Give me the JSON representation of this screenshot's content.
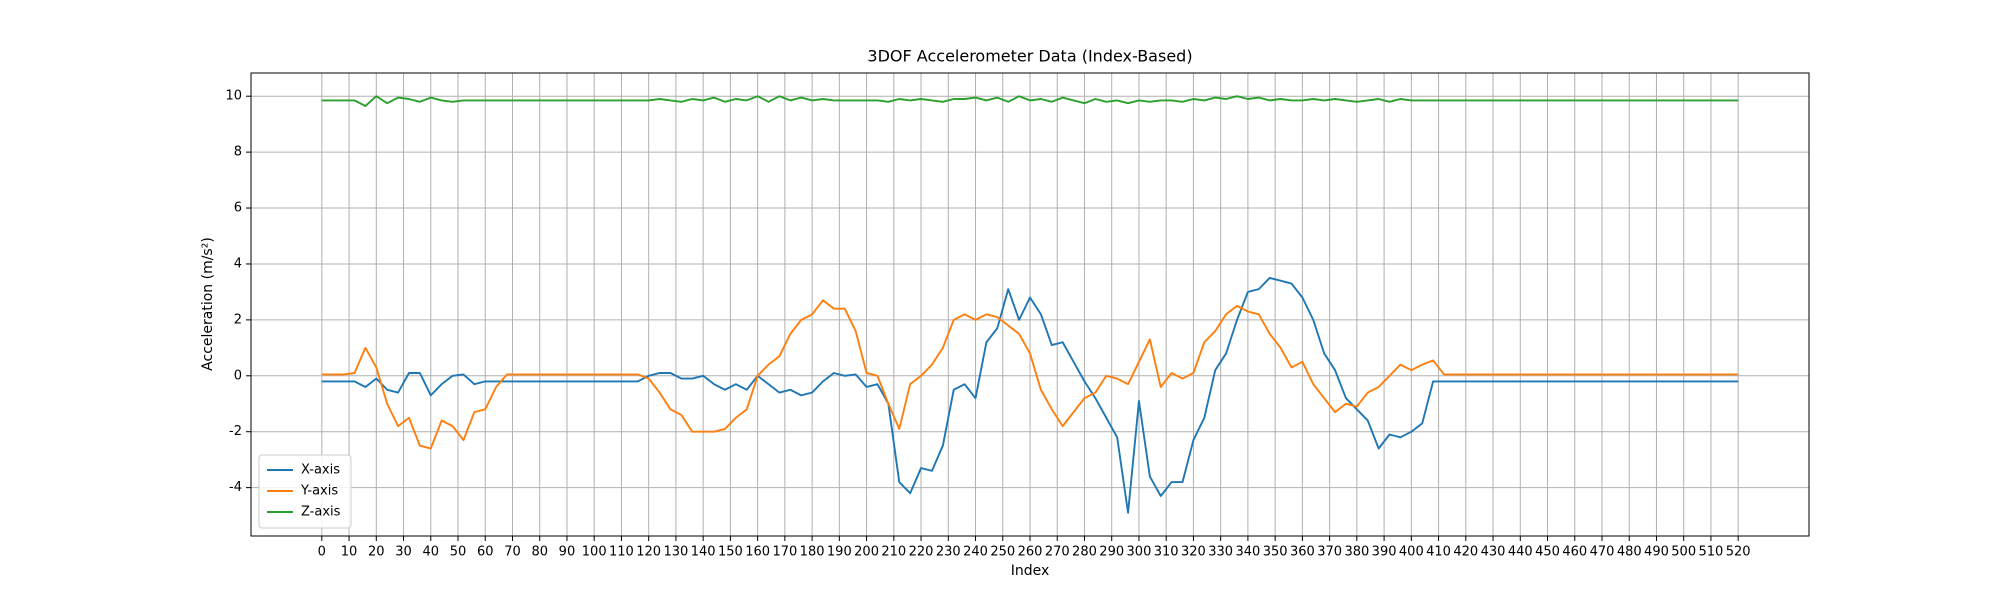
{
  "chart_data": {
    "type": "line",
    "title": "3DOF Accelerometer Data (Index-Based)",
    "x_label": "Index",
    "y_label": "Acceleration (m/s²)",
    "x": [
      0,
      4,
      8,
      12,
      16,
      20,
      24,
      28,
      32,
      36,
      40,
      44,
      48,
      52,
      56,
      60,
      64,
      68,
      72,
      76,
      80,
      84,
      88,
      92,
      96,
      100,
      104,
      108,
      112,
      116,
      120,
      124,
      128,
      132,
      136,
      140,
      144,
      148,
      152,
      156,
      160,
      164,
      168,
      172,
      176,
      180,
      184,
      188,
      192,
      196,
      200,
      204,
      208,
      212,
      216,
      220,
      224,
      228,
      232,
      236,
      240,
      244,
      248,
      252,
      256,
      260,
      264,
      268,
      272,
      276,
      280,
      284,
      288,
      292,
      296,
      300,
      304,
      308,
      312,
      316,
      320,
      324,
      328,
      332,
      336,
      340,
      344,
      348,
      352,
      356,
      360,
      364,
      368,
      372,
      376,
      380,
      384,
      388,
      392,
      396,
      400,
      404,
      408,
      412,
      416,
      420,
      424,
      428,
      432,
      436,
      440,
      444,
      448,
      452,
      456,
      460,
      464,
      468,
      472,
      476,
      480,
      484,
      488,
      492,
      496,
      500,
      504,
      508,
      512,
      516,
      520
    ],
    "series": [
      {
        "name": "X-axis",
        "color": "#1f77b4",
        "values": [
          -0.2,
          -0.2,
          -0.2,
          -0.2,
          -0.4,
          -0.1,
          -0.5,
          -0.6,
          0.1,
          0.1,
          -0.7,
          -0.3,
          0,
          0.05,
          -0.3,
          -0.2,
          -0.2,
          -0.2,
          -0.2,
          -0.2,
          -0.2,
          -0.2,
          -0.2,
          -0.2,
          -0.2,
          -0.2,
          -0.2,
          -0.2,
          -0.2,
          -0.2,
          0,
          0.1,
          0.1,
          -0.1,
          -0.1,
          0,
          -0.3,
          -0.5,
          -0.3,
          -0.5,
          0,
          -0.3,
          -0.6,
          -0.5,
          -0.7,
          -0.6,
          -0.2,
          0.1,
          0,
          0.05,
          -0.4,
          -0.3,
          -1.0,
          -3.8,
          -4.2,
          -3.3,
          -3.4,
          -2.5,
          -0.5,
          -0.3,
          -0.8,
          1.2,
          1.7,
          3.1,
          2.0,
          2.8,
          2.2,
          1.1,
          1.2,
          0.5,
          -0.2,
          -0.8,
          -1.5,
          -2.2,
          -4.9,
          -0.9,
          -3.6,
          -4.3,
          -3.8,
          -3.8,
          -2.3,
          -1.5,
          0.2,
          0.8,
          2.0,
          3.0,
          3.1,
          3.5,
          3.4,
          3.3,
          2.8,
          2.0,
          0.8,
          0.2,
          -0.8,
          -1.2,
          -1.6,
          -2.6,
          -2.1,
          -2.2,
          -2.0,
          -1.7,
          -0.2,
          -0.2,
          -0.2,
          -0.2,
          -0.2,
          -0.2,
          -0.2,
          -0.2,
          -0.2,
          -0.2,
          -0.2,
          -0.2,
          -0.2,
          -0.2,
          -0.2,
          -0.2,
          -0.2,
          -0.2,
          -0.2,
          -0.2,
          -0.2,
          -0.2,
          -0.2,
          -0.2,
          -0.2,
          -0.2,
          -0.2,
          -0.2,
          -0.2
        ]
      },
      {
        "name": "Y-axis",
        "color": "#ff7f0e",
        "values": [
          0.05,
          0.05,
          0.05,
          0.1,
          1.0,
          0.3,
          -1.0,
          -1.8,
          -1.5,
          -2.5,
          -2.6,
          -1.6,
          -1.8,
          -2.3,
          -1.3,
          -1.2,
          -0.4,
          0.05,
          0.05,
          0.05,
          0.05,
          0.05,
          0.05,
          0.05,
          0.05,
          0.05,
          0.05,
          0.05,
          0.05,
          0.05,
          -0.1,
          -0.6,
          -1.2,
          -1.4,
          -2.0,
          -2.0,
          -2.0,
          -1.9,
          -1.5,
          -1.2,
          0.0,
          0.4,
          0.7,
          1.5,
          2.0,
          2.2,
          2.7,
          2.4,
          2.4,
          1.6,
          0.1,
          0.0,
          -1.0,
          -1.9,
          -0.3,
          0.0,
          0.4,
          1.0,
          2.0,
          2.2,
          2.0,
          2.2,
          2.1,
          1.8,
          1.5,
          0.8,
          -0.5,
          -1.2,
          -1.8,
          -1.3,
          -0.8,
          -0.6,
          0.0,
          -0.1,
          -0.3,
          0.5,
          1.3,
          -0.4,
          0.1,
          -0.1,
          0.1,
          1.2,
          1.6,
          2.2,
          2.5,
          2.3,
          2.2,
          1.5,
          1.0,
          0.3,
          0.5,
          -0.3,
          -0.8,
          -1.3,
          -1.0,
          -1.1,
          -0.6,
          -0.4,
          0.0,
          0.4,
          0.2,
          0.4,
          0.55,
          0.05,
          0.05,
          0.05,
          0.05,
          0.05,
          0.05,
          0.05,
          0.05,
          0.05,
          0.05,
          0.05,
          0.05,
          0.05,
          0.05,
          0.05,
          0.05,
          0.05,
          0.05,
          0.05,
          0.05,
          0.05,
          0.05,
          0.05,
          0.05,
          0.05,
          0.05,
          0.05,
          0.05
        ]
      },
      {
        "name": "Z-axis",
        "color": "#2ca02c",
        "values": [
          9.85,
          9.85,
          9.85,
          9.85,
          9.65,
          10.0,
          9.75,
          9.95,
          9.9,
          9.8,
          9.95,
          9.85,
          9.8,
          9.85,
          9.85,
          9.85,
          9.85,
          9.85,
          9.85,
          9.85,
          9.85,
          9.85,
          9.85,
          9.85,
          9.85,
          9.85,
          9.85,
          9.85,
          9.85,
          9.85,
          9.85,
          9.9,
          9.85,
          9.8,
          9.9,
          9.85,
          9.95,
          9.8,
          9.9,
          9.85,
          10.0,
          9.8,
          10.0,
          9.85,
          9.95,
          9.85,
          9.9,
          9.85,
          9.85,
          9.85,
          9.85,
          9.85,
          9.8,
          9.9,
          9.85,
          9.9,
          9.85,
          9.8,
          9.9,
          9.9,
          9.95,
          9.85,
          9.95,
          9.8,
          10.0,
          9.85,
          9.9,
          9.8,
          9.95,
          9.85,
          9.75,
          9.9,
          9.8,
          9.85,
          9.75,
          9.85,
          9.8,
          9.85,
          9.85,
          9.8,
          9.9,
          9.85,
          9.95,
          9.9,
          10.0,
          9.9,
          9.95,
          9.85,
          9.9,
          9.85,
          9.85,
          9.9,
          9.85,
          9.9,
          9.85,
          9.8,
          9.85,
          9.9,
          9.8,
          9.9,
          9.85,
          9.85,
          9.85,
          9.85,
          9.85,
          9.85,
          9.85,
          9.85,
          9.85,
          9.85,
          9.85,
          9.85,
          9.85,
          9.85,
          9.85,
          9.85,
          9.85,
          9.85,
          9.85,
          9.85,
          9.85,
          9.85,
          9.85,
          9.85,
          9.85,
          9.85,
          9.85,
          9.85,
          9.85,
          9.85,
          9.85
        ]
      }
    ],
    "xlim": [
      -26,
      546
    ],
    "ylim": [
      -5.73,
      10.83
    ],
    "xticks": [
      0,
      10,
      20,
      30,
      40,
      50,
      60,
      70,
      80,
      90,
      100,
      110,
      120,
      130,
      140,
      150,
      160,
      170,
      180,
      190,
      200,
      210,
      220,
      230,
      240,
      250,
      260,
      270,
      280,
      290,
      300,
      310,
      320,
      330,
      340,
      350,
      360,
      370,
      380,
      390,
      400,
      410,
      420,
      430,
      440,
      450,
      460,
      470,
      480,
      490,
      500,
      510,
      520
    ],
    "yticks": [
      -4,
      -2,
      0,
      2,
      4,
      6,
      8,
      10
    ],
    "grid": true,
    "legend": "lower left"
  }
}
